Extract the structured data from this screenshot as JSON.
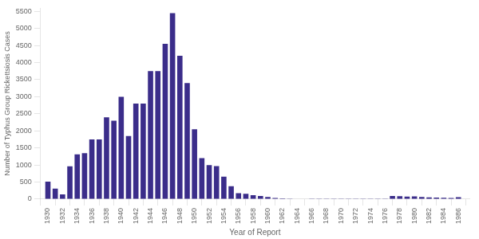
{
  "chart_data": {
    "type": "bar",
    "xlabel": "Year of Report",
    "ylabel": "Number of Typhus Group Rickettsiosis Cases",
    "x": [
      1930,
      1931,
      1932,
      1933,
      1934,
      1935,
      1936,
      1937,
      1938,
      1939,
      1940,
      1941,
      1942,
      1943,
      1944,
      1945,
      1946,
      1947,
      1948,
      1949,
      1950,
      1951,
      1952,
      1953,
      1954,
      1955,
      1956,
      1957,
      1958,
      1959,
      1960,
      1961,
      1962,
      1963,
      1964,
      1965,
      1966,
      1967,
      1968,
      1969,
      1970,
      1971,
      1972,
      1973,
      1974,
      1975,
      1976,
      1977,
      1978,
      1979,
      1980,
      1981,
      1982,
      1983,
      1984,
      1985,
      1986
    ],
    "values": [
      510,
      310,
      140,
      960,
      1310,
      1350,
      1750,
      1750,
      2400,
      2300,
      3000,
      1850,
      2800,
      2800,
      3750,
      3750,
      4550,
      5450,
      4200,
      3400,
      2050,
      1200,
      1000,
      970,
      660,
      380,
      175,
      155,
      115,
      90,
      65,
      35,
      20,
      15,
      10,
      10,
      8,
      8,
      8,
      8,
      8,
      8,
      8,
      8,
      8,
      8,
      8,
      90,
      85,
      75,
      80,
      65,
      50,
      45,
      40,
      35,
      55
    ],
    "color": "#3b2d8a",
    "xlim": [
      1929,
      1987.5
    ],
    "xticks": [
      1930,
      1932,
      1934,
      1936,
      1938,
      1940,
      1942,
      1944,
      1946,
      1948,
      1950,
      1952,
      1954,
      1956,
      1958,
      1960,
      1962,
      1964,
      1966,
      1968,
      1970,
      1972,
      1974,
      1976,
      1978,
      1980,
      1982,
      1984,
      1986
    ],
    "ylim": [
      0,
      5600
    ],
    "yticks": [
      0,
      500,
      1000,
      1500,
      2000,
      2500,
      3000,
      3500,
      4000,
      4500,
      5000,
      5500
    ],
    "grid": false
  }
}
